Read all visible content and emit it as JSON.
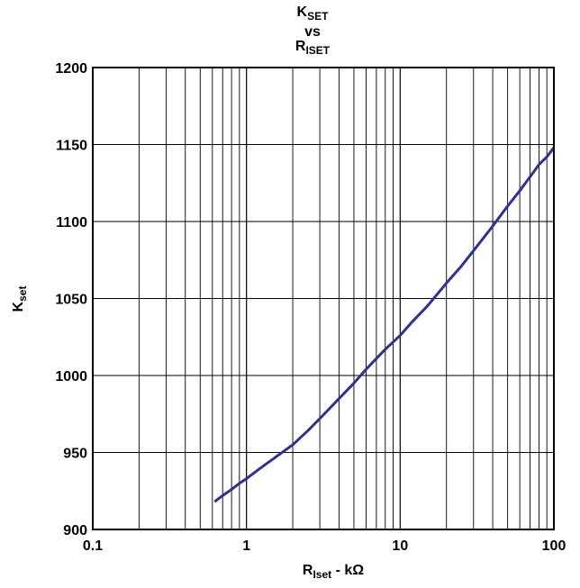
{
  "chart_data": {
    "type": "line",
    "title": {
      "line1_main": "K",
      "line1_sub": "SET",
      "line2": "vs",
      "line3_main": "R",
      "line3_sub": "ISET"
    },
    "xlabel": {
      "main": "R",
      "sub": "Iset",
      "suffix": " - kΩ"
    },
    "ylabel": {
      "main": "K",
      "sub": "set"
    },
    "x_scale": "log",
    "xlim": [
      0.1,
      100
    ],
    "ylim": [
      900,
      1200
    ],
    "x_tick_labels": [
      "0.1",
      "1",
      "10",
      "100"
    ],
    "y_tick_labels": [
      "900",
      "950",
      "1000",
      "1050",
      "1100",
      "1150",
      "1200"
    ],
    "grid": true,
    "series_color": "#2e3192",
    "series": [
      {
        "x": [
          0.62,
          0.7,
          0.8,
          0.9,
          1.0,
          1.2,
          1.5,
          2.0,
          2.5,
          3.0,
          4.0,
          5.0,
          6.0,
          7.0,
          8.0,
          10,
          12,
          15,
          20,
          25,
          30,
          40,
          50,
          60,
          70,
          80,
          90,
          100
        ],
        "y": [
          918,
          922,
          926,
          930,
          933,
          939,
          946,
          955,
          964,
          972,
          985,
          995,
          1004,
          1011,
          1017,
          1026,
          1035,
          1045,
          1060,
          1071,
          1081,
          1097,
          1110,
          1120,
          1129,
          1137,
          1142,
          1148
        ]
      }
    ]
  }
}
